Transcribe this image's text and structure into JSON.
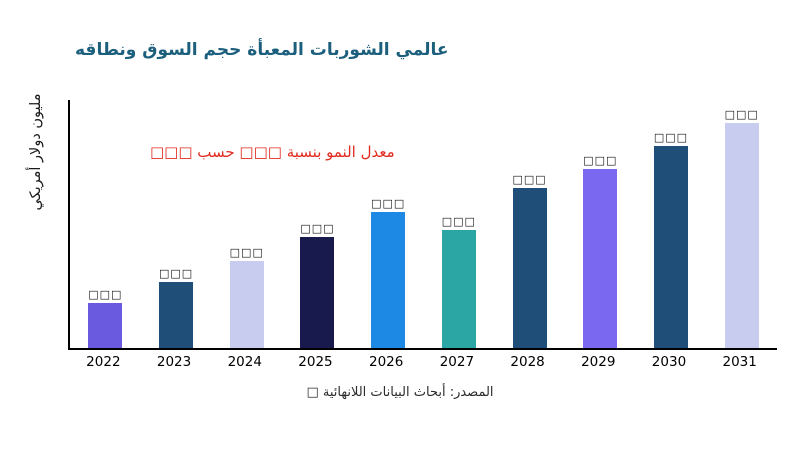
{
  "title": "عالمي الشوربات المعبأة حجم السوق ونطاقه",
  "annotation": "معدل النمو بنسبة □□□ حسب □□□",
  "y_axis_label": "مليون دولار أمريكي",
  "source": "المصدر: أبحاث البيانات اللانهائية □",
  "colors": {
    "title": "#1c5f7d",
    "annotation": "#e02a1e",
    "axis": "#000000"
  },
  "chart_data": {
    "type": "bar",
    "title": "عالمي الشوربات المعبأة حجم السوق ونطاقه",
    "xlabel": "",
    "ylabel": "مليون دولار أمريكي",
    "categories": [
      "2022",
      "2023",
      "2024",
      "2025",
      "2026",
      "2027",
      "2028",
      "2029",
      "2030",
      "2031"
    ],
    "values": [
      45,
      67,
      88,
      112,
      137,
      119,
      161,
      180,
      204,
      227
    ],
    "value_labels": [
      "□□□",
      "□□□",
      "□□□",
      "□□□",
      "□□□",
      "□□□",
      "□□□",
      "□□□",
      "□□□",
      "□□□"
    ],
    "bar_colors": [
      "#6a5ae0",
      "#1f4e79",
      "#c8cdf0",
      "#181a4e",
      "#1e88e5",
      "#2ca6a4",
      "#1f4e79",
      "#7a68f0",
      "#1f4e79",
      "#c8cdf0"
    ],
    "ylim": [
      0,
      250
    ],
    "y_ticks_visible": false,
    "grid": false,
    "legend": false
  }
}
